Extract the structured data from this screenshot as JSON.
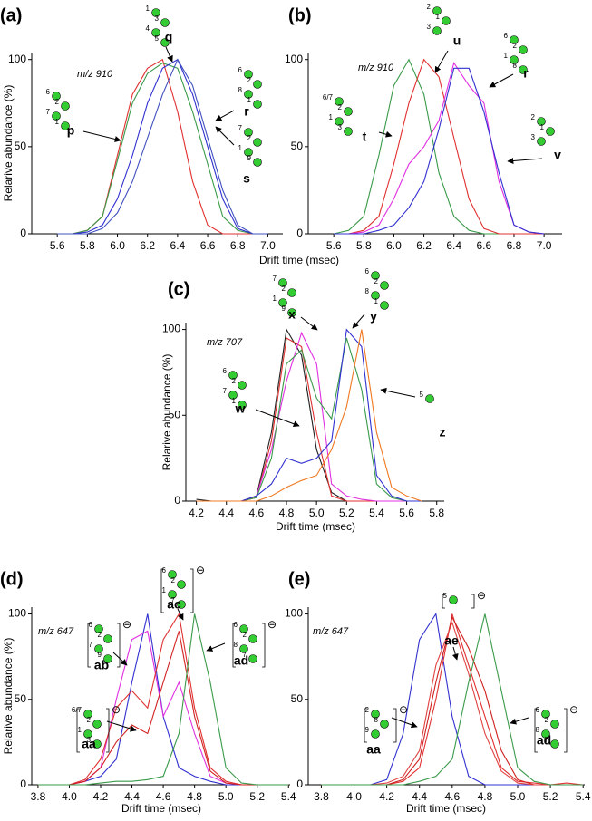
{
  "chart_data": [
    {
      "type": "line",
      "panel": "(a)",
      "annotation": "m/z 910",
      "y_label": "Relarive abundance (%)",
      "x_label": "Drift time (msec)",
      "x": [
        5.6,
        5.7,
        5.8,
        5.9,
        6.0,
        6.1,
        6.2,
        6.3,
        6.4,
        6.5,
        6.6,
        6.7,
        6.8,
        6.9,
        7.0
      ],
      "series": [
        {
          "color": "#e03030",
          "values": [
            0,
            0,
            2,
            10,
            45,
            80,
            95,
            100,
            70,
            30,
            5,
            0,
            0,
            0,
            0
          ]
        },
        {
          "color": "#3a9a4a",
          "values": [
            0,
            0,
            2,
            10,
            42,
            75,
            92,
            98,
            95,
            70,
            40,
            10,
            2,
            0,
            0
          ]
        },
        {
          "color": "#3030d0",
          "values": [
            0,
            0,
            1,
            5,
            20,
            45,
            75,
            95,
            100,
            80,
            50,
            20,
            3,
            0,
            0
          ]
        },
        {
          "color": "#4050c0",
          "values": [
            0,
            0,
            0,
            3,
            12,
            30,
            55,
            80,
            100,
            85,
            55,
            25,
            5,
            0,
            0
          ]
        }
      ],
      "xlim": [
        5.43,
        7.1
      ],
      "ylim": [
        0,
        104
      ],
      "xticks": [
        5.6,
        5.8,
        {
          "value": 6,
          "label": "6.0"
        },
        6.2,
        6.4,
        6.6,
        6.8,
        {
          "value": 7,
          "label": "7.0"
        }
      ],
      "yticks": [
        0,
        50,
        100
      ],
      "glycans": [
        {
          "label": "p",
          "numbers": [
            "6",
            "2",
            "7",
            "1"
          ]
        },
        {
          "label": "q",
          "numbers": [
            "1",
            "3",
            "4",
            "5"
          ]
        },
        {
          "label": "r",
          "numbers": [
            "6",
            "2",
            "8",
            "1"
          ]
        },
        {
          "label": "s",
          "numbers": [
            "7",
            "2",
            "1",
            "9"
          ]
        }
      ]
    },
    {
      "type": "line",
      "panel": "(b)",
      "annotation": "m/z 910",
      "x": [
        5.6,
        5.7,
        5.8,
        5.9,
        6.0,
        6.1,
        6.2,
        6.3,
        6.4,
        6.5,
        6.6,
        6.7,
        6.8,
        6.9,
        7.0
      ],
      "series": [
        {
          "color": "#3a9a4a",
          "values": [
            0,
            2,
            10,
            45,
            85,
            100,
            80,
            35,
            10,
            2,
            0,
            0,
            0,
            0,
            0
          ]
        },
        {
          "color": "#e03030",
          "values": [
            0,
            0,
            2,
            10,
            40,
            75,
            100,
            90,
            55,
            20,
            3,
            0,
            0,
            0,
            0
          ]
        },
        {
          "color": "#e030e0",
          "values": [
            0,
            0,
            1,
            5,
            20,
            40,
            50,
            65,
            98,
            85,
            75,
            30,
            5,
            1,
            0
          ]
        },
        {
          "color": "#3030d0",
          "values": [
            0,
            0,
            0,
            2,
            5,
            15,
            30,
            60,
            95,
            95,
            70,
            35,
            5,
            1,
            0
          ]
        }
      ],
      "xlim": [
        5.43,
        7.12
      ],
      "ylim": [
        0,
        104
      ],
      "xticks": [
        5.6,
        5.8,
        {
          "value": 6,
          "label": "6.0"
        },
        6.2,
        6.4,
        6.6,
        6.8,
        {
          "value": 7,
          "label": "7.0"
        }
      ],
      "yticks": [
        0,
        50,
        100
      ],
      "glycans": [
        {
          "label": "u",
          "numbers": [
            "2",
            "1",
            "3"
          ]
        },
        {
          "label": "r",
          "numbers": [
            "6",
            "2",
            "1",
            "8"
          ]
        },
        {
          "label": "t",
          "numbers": [
            "6/7",
            "2",
            "1",
            "3"
          ]
        },
        {
          "label": "v",
          "numbers": [
            "2",
            "1",
            "3"
          ]
        }
      ]
    },
    {
      "type": "line",
      "panel": "(c)",
      "annotation": "m/z 707",
      "y_label": "Relarive abundance (%)",
      "x_label": "Drift time (msec)",
      "x": [
        4.2,
        4.3,
        4.4,
        4.5,
        4.6,
        4.7,
        4.8,
        4.9,
        5.0,
        5.1,
        5.2,
        5.3,
        5.4,
        5.5,
        5.6,
        5.7
      ],
      "series": [
        {
          "color": "#202020",
          "values": [
            1,
            0,
            0,
            0,
            3,
            40,
            100,
            85,
            30,
            5,
            0,
            0,
            0,
            0,
            0,
            0
          ]
        },
        {
          "color": "#e03030",
          "values": [
            0,
            0,
            0,
            0,
            2,
            35,
            95,
            90,
            40,
            3,
            0,
            0,
            0,
            0,
            0,
            0
          ]
        },
        {
          "color": "#e030e0",
          "values": [
            0,
            0,
            0,
            0,
            3,
            30,
            70,
            98,
            80,
            10,
            3,
            1,
            0,
            0,
            0,
            0
          ]
        },
        {
          "color": "#3a9a4a",
          "values": [
            0,
            0,
            0,
            0,
            2,
            25,
            80,
            88,
            60,
            48,
            95,
            65,
            10,
            2,
            0,
            0
          ]
        },
        {
          "color": "#3030d0",
          "values": [
            0,
            0,
            0,
            0,
            3,
            10,
            25,
            22,
            25,
            35,
            100,
            90,
            15,
            3,
            0,
            0
          ]
        },
        {
          "color": "#f07820",
          "values": [
            0,
            0,
            0,
            0,
            0,
            3,
            8,
            12,
            15,
            30,
            55,
            100,
            40,
            8,
            3,
            0
          ]
        }
      ],
      "xlim": [
        4.13,
        5.85
      ],
      "ylim": [
        0,
        104
      ],
      "xticks": [
        4.2,
        4.4,
        4.6,
        4.8,
        {
          "value": 5,
          "label": "5.0"
        },
        5.2,
        5.4,
        5.6,
        5.8
      ],
      "yticks": [
        0,
        50,
        100
      ],
      "glycans": [
        {
          "label": "x",
          "numbers": [
            "7",
            "2",
            "1",
            "9"
          ]
        },
        {
          "label": "y",
          "numbers": [
            "6",
            "2",
            "8",
            "1"
          ]
        },
        {
          "label": "w",
          "numbers": [
            "6",
            "2",
            "7",
            "1"
          ]
        },
        {
          "label": "z",
          "numbers": [
            "5"
          ]
        }
      ]
    },
    {
      "type": "line",
      "panel": "(d)",
      "annotation": "m/z 647",
      "y_label": "Relarive abundance (%)",
      "x_label": "Drift time (msec)",
      "x": [
        3.8,
        3.9,
        4.0,
        4.1,
        4.2,
        4.3,
        4.4,
        4.5,
        4.6,
        4.7,
        4.8,
        4.9,
        5.0,
        5.1,
        5.2,
        5.3,
        5.4
      ],
      "series": [
        {
          "color": "#3030d0",
          "values": [
            0,
            0,
            0,
            2,
            5,
            15,
            60,
            100,
            40,
            10,
            5,
            2,
            0,
            0,
            0,
            0,
            0
          ]
        },
        {
          "color": "#e030e0",
          "values": [
            0,
            0,
            0,
            2,
            10,
            50,
            85,
            90,
            40,
            60,
            30,
            5,
            1,
            0,
            0,
            0,
            0
          ]
        },
        {
          "color": "#e03030",
          "values": [
            0,
            0,
            0,
            3,
            15,
            45,
            55,
            45,
            85,
            100,
            45,
            10,
            2,
            0,
            0,
            0,
            0
          ]
        },
        {
          "color": "#d02020",
          "values": [
            0,
            0,
            0,
            2,
            10,
            25,
            35,
            30,
            60,
            90,
            40,
            8,
            1,
            0,
            0,
            0,
            0
          ]
        },
        {
          "color": "#3a9a4a",
          "values": [
            0,
            0,
            0,
            0,
            1,
            2,
            2,
            3,
            5,
            30,
            100,
            60,
            10,
            1,
            0,
            0,
            0
          ]
        }
      ],
      "xlim": [
        3.76,
        5.41
      ],
      "ylim": [
        0,
        104
      ],
      "xticks": [
        3.8,
        {
          "value": 4,
          "label": "4.0"
        },
        4.2,
        4.4,
        4.6,
        4.8,
        {
          "value": 5,
          "label": "5.0"
        },
        5.2,
        5.4
      ],
      "yticks": [
        0,
        50,
        100
      ],
      "glycans": [
        {
          "label": "ac",
          "numbers": [
            "6",
            "2",
            "1",
            "7"
          ],
          "charge": "⊖"
        },
        {
          "label": "ab",
          "numbers": [
            "6",
            "2",
            "7",
            "9"
          ],
          "charge": "⊖"
        },
        {
          "label": "ad",
          "numbers": [
            "6",
            "2",
            "8",
            "7"
          ],
          "charge": "⊖"
        },
        {
          "label": "aa",
          "numbers": [
            "6/7",
            "2",
            "1",
            "3"
          ],
          "charge": "⊖"
        }
      ]
    },
    {
      "type": "line",
      "panel": "(e)",
      "annotation": "m/z 647",
      "x_label": "Drift time (msec)",
      "x": [
        3.8,
        3.9,
        4.0,
        4.1,
        4.2,
        4.3,
        4.4,
        4.5,
        4.6,
        4.7,
        4.8,
        4.9,
        5.0,
        5.1,
        5.2,
        5.3,
        5.4
      ],
      "series": [
        {
          "color": "#3030d0",
          "values": [
            0,
            0,
            0,
            0,
            3,
            30,
            85,
            100,
            40,
            5,
            0,
            0,
            0,
            0,
            0,
            0,
            0
          ]
        },
        {
          "color": "#e03030",
          "values": [
            0,
            0,
            0,
            0,
            0,
            2,
            10,
            50,
            100,
            70,
            40,
            10,
            2,
            1,
            0,
            1,
            0
          ]
        },
        {
          "color": "#d02020",
          "values": [
            0,
            0,
            0,
            0,
            0,
            3,
            15,
            60,
            98,
            80,
            55,
            20,
            3,
            0,
            0,
            0,
            0
          ]
        },
        {
          "color": "#e04040",
          "values": [
            0,
            0,
            0,
            0,
            1,
            5,
            20,
            70,
            95,
            65,
            30,
            8,
            1,
            0,
            0,
            0,
            0
          ]
        },
        {
          "color": "#3a9a4a",
          "values": [
            0,
            0,
            0,
            0,
            0,
            0,
            2,
            5,
            15,
            60,
            100,
            55,
            10,
            2,
            0,
            0,
            0
          ]
        }
      ],
      "xlim": [
        3.72,
        5.41
      ],
      "ylim": [
        0,
        104
      ],
      "xticks": [
        3.8,
        {
          "value": 4,
          "label": "4.0"
        },
        4.2,
        4.4,
        4.6,
        4.8,
        {
          "value": 5,
          "label": "5.0"
        },
        5.2,
        5.4
      ],
      "yticks": [
        0,
        50,
        100
      ],
      "glycans": [
        {
          "label": "ae",
          "numbers": [
            "5"
          ],
          "charge": "⊖"
        },
        {
          "label": "aa",
          "numbers": [
            "2",
            "8",
            "9"
          ],
          "charge": "⊖"
        },
        {
          "label": "ad",
          "numbers": [
            "6",
            "2",
            "8",
            "7"
          ],
          "charge": "⊖"
        }
      ]
    }
  ]
}
